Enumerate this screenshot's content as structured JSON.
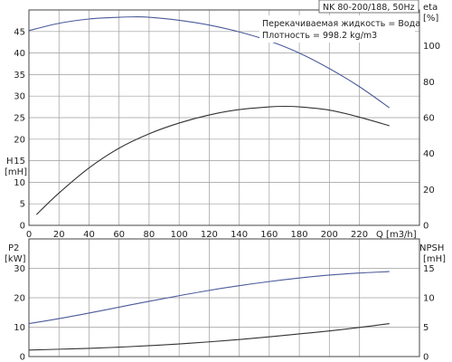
{
  "legend": {
    "title": "NK 80-200/188, 50Hz",
    "line1": "Перекачиваемая жидкость = Вода",
    "line2": "Плотность = 998.2 kg/m3"
  },
  "chart_data": [
    {
      "type": "line",
      "panel": "top",
      "y_label_left": [
        "H",
        "[mH]"
      ],
      "y_label_right": [
        "eta",
        "[%]"
      ],
      "x_label": "Q [m3/h]",
      "x_ticks": [
        0,
        20,
        40,
        60,
        80,
        100,
        120,
        140,
        160,
        180,
        200,
        220
      ],
      "xlim": [
        0,
        260
      ],
      "y_ticks_left": [
        0,
        5,
        10,
        15,
        20,
        25,
        30,
        35,
        40,
        45
      ],
      "ylim_left": [
        0,
        50
      ],
      "y_ticks_right": [
        0,
        20,
        40,
        60,
        80,
        100
      ],
      "ylim_right": [
        0,
        120
      ],
      "grid": true,
      "series": [
        {
          "axis": "left",
          "color": "#4a5a9a",
          "x": [
            0,
            20,
            40,
            60,
            70,
            80,
            100,
            120,
            140,
            160,
            180,
            200,
            220,
            240
          ],
          "y": [
            45.2,
            46.9,
            47.9,
            48.3,
            48.4,
            48.3,
            47.6,
            46.5,
            44.9,
            42.8,
            40.0,
            36.4,
            32.2,
            27.3
          ]
        },
        {
          "axis": "right",
          "color": "#333333",
          "x": [
            5,
            20,
            40,
            60,
            80,
            100,
            120,
            140,
            160,
            170,
            180,
            200,
            220,
            240
          ],
          "y": [
            6,
            18,
            32,
            43,
            51,
            57,
            61.5,
            64.5,
            66,
            66.3,
            66,
            64.2,
            60.3,
            55.5
          ]
        }
      ]
    },
    {
      "type": "line",
      "panel": "bottom",
      "y_label_left": [
        "P2",
        "[kW]"
      ],
      "y_label_right": [
        "NPSH",
        "[mH]"
      ],
      "xlim": [
        0,
        260
      ],
      "y_ticks_left": [
        0,
        10,
        20,
        30
      ],
      "ylim_left": [
        0,
        40
      ],
      "y_ticks_right": [
        0,
        5,
        10,
        15
      ],
      "ylim_right": [
        0,
        20
      ],
      "grid": true,
      "series": [
        {
          "axis": "left",
          "color": "#4a5a9a",
          "x": [
            0,
            20,
            40,
            60,
            80,
            100,
            120,
            140,
            160,
            180,
            200,
            220,
            240
          ],
          "y": [
            11.2,
            12.9,
            14.8,
            16.8,
            18.8,
            20.7,
            22.5,
            24.1,
            25.5,
            26.7,
            27.7,
            28.4,
            28.9
          ]
        },
        {
          "axis": "right",
          "color": "#333333",
          "x": [
            0,
            20,
            40,
            60,
            80,
            100,
            120,
            140,
            160,
            180,
            200,
            220,
            240
          ],
          "y": [
            1.1,
            1.25,
            1.4,
            1.6,
            1.85,
            2.15,
            2.5,
            2.9,
            3.35,
            3.85,
            4.35,
            4.95,
            5.6
          ]
        }
      ]
    }
  ]
}
